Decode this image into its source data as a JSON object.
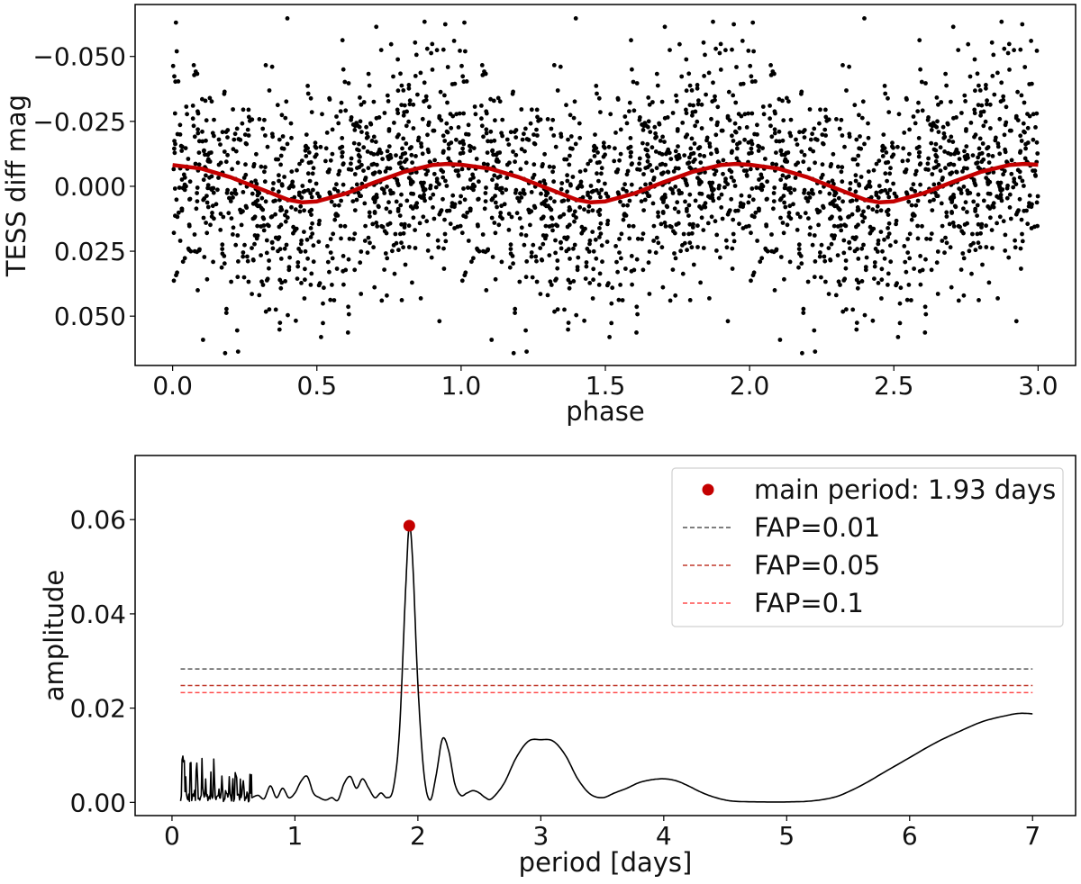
{
  "chart_data": [
    {
      "type": "scatter",
      "xlabel": "phase",
      "ylabel": "TESS diff mag",
      "xlim": [
        -0.13,
        3.13
      ],
      "ylim": [
        0.069,
        -0.07
      ],
      "y_inverted": true,
      "x_ticks": [
        0.0,
        0.5,
        1.0,
        1.5,
        2.0,
        2.5,
        3.0
      ],
      "x_tick_labels": [
        "0.0",
        "0.5",
        "1.0",
        "1.5",
        "2.0",
        "2.5",
        "3.0"
      ],
      "y_ticks": [
        -0.05,
        -0.025,
        0.0,
        0.025,
        0.05
      ],
      "y_tick_labels": [
        "−0.050",
        "−0.025",
        "0.000",
        "0.025",
        "0.050"
      ],
      "points_color": "#000000",
      "points_note": "~2700 phase-folded photometry points (3 repeated cycles), scatter about 0 with sd ~0.02 mag, range about −0.065 to 0.065",
      "model": {
        "name": "sinusoid fit",
        "color": "#c40000",
        "x": [
          0.0,
          0.1,
          0.2,
          0.3,
          0.4,
          0.45,
          0.5,
          0.6,
          0.7,
          0.8,
          0.9,
          0.95,
          1.0,
          1.1,
          1.2,
          1.3,
          1.4,
          1.45,
          1.5,
          1.6,
          1.7,
          1.8,
          1.9,
          1.95,
          2.0,
          2.1,
          2.2,
          2.3,
          2.4,
          2.45,
          2.5,
          2.6,
          2.7,
          2.8,
          2.9,
          2.95,
          3.0
        ],
        "y": [
          -0.0082,
          -0.0068,
          -0.0035,
          0.0008,
          0.0052,
          0.0062,
          0.0058,
          0.0028,
          -0.0015,
          -0.0055,
          -0.0082,
          -0.0086,
          -0.0083,
          -0.0068,
          -0.0035,
          0.0008,
          0.0052,
          0.0062,
          0.0058,
          0.0028,
          -0.0015,
          -0.0055,
          -0.0082,
          -0.0086,
          -0.0083,
          -0.0068,
          -0.0035,
          0.0008,
          0.0052,
          0.0062,
          0.0058,
          0.0028,
          -0.0015,
          -0.0055,
          -0.0082,
          -0.0086,
          -0.0083
        ]
      }
    },
    {
      "type": "line",
      "xlabel": "period [days]",
      "ylabel": "amplitude",
      "xlim": [
        -0.3,
        7.35
      ],
      "ylim": [
        -0.0028,
        0.0736
      ],
      "x_ticks": [
        0,
        1,
        2,
        3,
        4,
        5,
        6,
        7
      ],
      "x_tick_labels": [
        "0",
        "1",
        "2",
        "3",
        "4",
        "5",
        "6",
        "7"
      ],
      "y_ticks": [
        0.0,
        0.02,
        0.04,
        0.06
      ],
      "y_tick_labels": [
        "0.00",
        "0.02",
        "0.04",
        "0.06"
      ],
      "periodogram": {
        "name": "periodogram",
        "color": "#000000",
        "period": [
          0.07,
          0.1,
          0.15,
          0.2,
          0.25,
          0.3,
          0.35,
          0.4,
          0.45,
          0.5,
          0.55,
          0.6,
          0.65,
          0.7,
          0.75,
          0.8,
          0.85,
          0.9,
          0.95,
          1.0,
          1.05,
          1.1,
          1.15,
          1.2,
          1.25,
          1.3,
          1.35,
          1.4,
          1.45,
          1.5,
          1.55,
          1.6,
          1.65,
          1.7,
          1.75,
          1.8,
          1.85,
          1.9,
          1.93,
          1.96,
          2.0,
          2.05,
          2.1,
          2.15,
          2.2,
          2.25,
          2.3,
          2.35,
          2.4,
          2.45,
          2.5,
          2.55,
          2.6,
          2.7,
          2.8,
          2.9,
          3.0,
          3.1,
          3.2,
          3.3,
          3.4,
          3.5,
          3.6,
          3.7,
          3.8,
          3.9,
          4.0,
          4.1,
          4.2,
          4.3,
          4.4,
          4.5,
          4.6,
          4.8,
          5.0,
          5.2,
          5.4,
          5.6,
          5.8,
          6.0,
          6.2,
          6.4,
          6.6,
          6.8,
          6.9,
          7.0
        ],
        "amplitude": [
          0.001,
          0.012,
          0.002,
          0.011,
          0.002,
          0.01,
          0.001,
          0.006,
          0.001,
          0.006,
          0.001,
          0.006,
          0.001,
          0.0015,
          0.0008,
          0.0035,
          0.001,
          0.003,
          0.001,
          0.002,
          0.0045,
          0.0055,
          0.002,
          0.001,
          0.0005,
          0.001,
          0.0005,
          0.004,
          0.0055,
          0.003,
          0.005,
          0.003,
          0.001,
          0.002,
          0.001,
          0.003,
          0.015,
          0.045,
          0.0587,
          0.05,
          0.025,
          0.006,
          0.0005,
          0.006,
          0.0135,
          0.011,
          0.004,
          0.0015,
          0.002,
          0.0025,
          0.002,
          0.001,
          0.0008,
          0.004,
          0.0095,
          0.013,
          0.0133,
          0.013,
          0.01,
          0.005,
          0.0018,
          0.001,
          0.002,
          0.003,
          0.0042,
          0.0048,
          0.005,
          0.0046,
          0.0035,
          0.0022,
          0.0012,
          0.0005,
          0.0002,
          0.0001,
          0.0001,
          0.0003,
          0.0012,
          0.0035,
          0.0065,
          0.0095,
          0.0125,
          0.015,
          0.0172,
          0.0185,
          0.0189,
          0.0188
        ]
      },
      "peak": {
        "name": "main period: 1.93 days",
        "period": 1.93,
        "amplitude": 0.0587,
        "color": "#c40000"
      },
      "fap_lines": [
        {
          "label": "FAP=0.01",
          "value": 0.0283,
          "color": "#555555"
        },
        {
          "label": "FAP=0.05",
          "value": 0.0248,
          "color": "#c0392b"
        },
        {
          "label": "FAP=0.1",
          "value": 0.0233,
          "color": "#ff4d4d"
        }
      ],
      "legend": {
        "position": "top-right",
        "entries": [
          "main period: 1.93 days",
          "FAP=0.01",
          "FAP=0.05",
          "FAP=0.1"
        ]
      }
    }
  ]
}
